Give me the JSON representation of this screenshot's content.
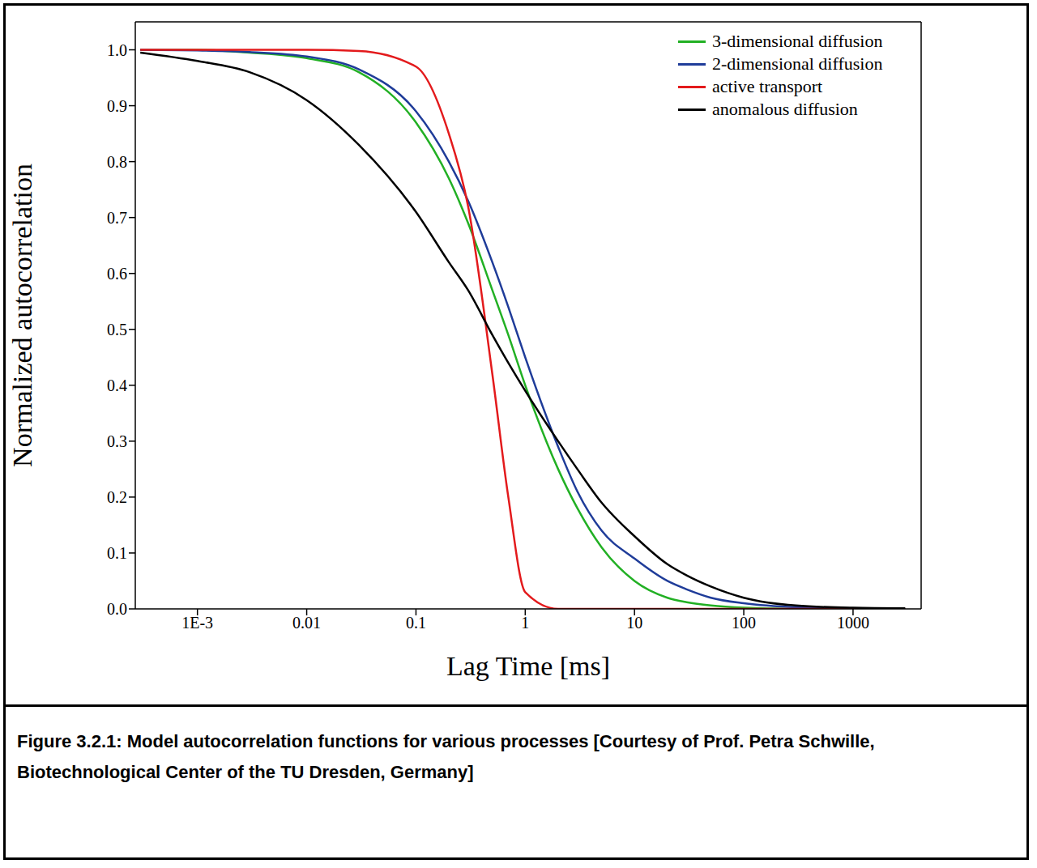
{
  "chart_data": {
    "type": "line",
    "x_label": "Lag Time [ms]",
    "y_label": "Normalized autocorrelation",
    "log": "x",
    "grid": false,
    "legend": "upper right",
    "xlim": [
      0.00027,
      4200
    ],
    "ylim": [
      0,
      1.05
    ],
    "xticks": [
      {
        "value": 0.001,
        "label": "1E-3"
      },
      0.01,
      0.1,
      1,
      10,
      100,
      1000
    ],
    "yticks": [
      {
        "value": 0,
        "label": "0.0"
      },
      0.1,
      0.2,
      0.3,
      0.4,
      0.5,
      0.6,
      0.7,
      0.8,
      0.9,
      {
        "value": 1,
        "label": "1.0"
      }
    ],
    "x": [
      0.0003,
      0.001,
      0.003,
      0.01,
      0.03,
      0.1,
      0.2,
      0.3,
      0.5,
      0.7,
      1,
      2,
      3,
      5,
      10,
      20,
      30,
      50,
      100,
      300,
      1000,
      3000
    ],
    "series": [
      {
        "name": "3-dimensional diffusion",
        "color": "#22b024",
        "values": [
          1,
          1,
          0.995,
          0.985,
          0.96,
          0.87,
          0.77,
          0.69,
          0.57,
          0.49,
          0.4,
          0.25,
          0.18,
          0.11,
          0.05,
          0.02,
          0.012,
          0.006,
          0.002,
          0,
          0,
          0
        ]
      },
      {
        "name": "2-dimensional diffusion",
        "color": "#1f3c99",
        "values": [
          1,
          0.999,
          0.996,
          0.988,
          0.965,
          0.89,
          0.8,
          0.73,
          0.62,
          0.54,
          0.45,
          0.29,
          0.21,
          0.14,
          0.09,
          0.05,
          0.035,
          0.02,
          0.01,
          0.003,
          0.001,
          0
        ]
      },
      {
        "name": "active transport",
        "color": "#e31a1c",
        "values": [
          1,
          1,
          1,
          1,
          0.998,
          0.97,
          0.85,
          0.72,
          0.42,
          0.2,
          0.03,
          0,
          0,
          0,
          0,
          0,
          0,
          0,
          0,
          0,
          0,
          0
        ]
      },
      {
        "name": "anomalous diffusion",
        "color": "#000000",
        "values": [
          0.995,
          0.98,
          0.96,
          0.91,
          0.83,
          0.71,
          0.62,
          0.57,
          0.49,
          0.44,
          0.39,
          0.3,
          0.25,
          0.19,
          0.13,
          0.08,
          0.06,
          0.04,
          0.02,
          0.006,
          0.002,
          0.001
        ]
      }
    ]
  },
  "caption": "Figure 3.2.1: Model autocorrelation functions for various processes [Courtesy of Prof. Petra Schwille, Biotechnological Center of the TU Dresden, Germany]"
}
